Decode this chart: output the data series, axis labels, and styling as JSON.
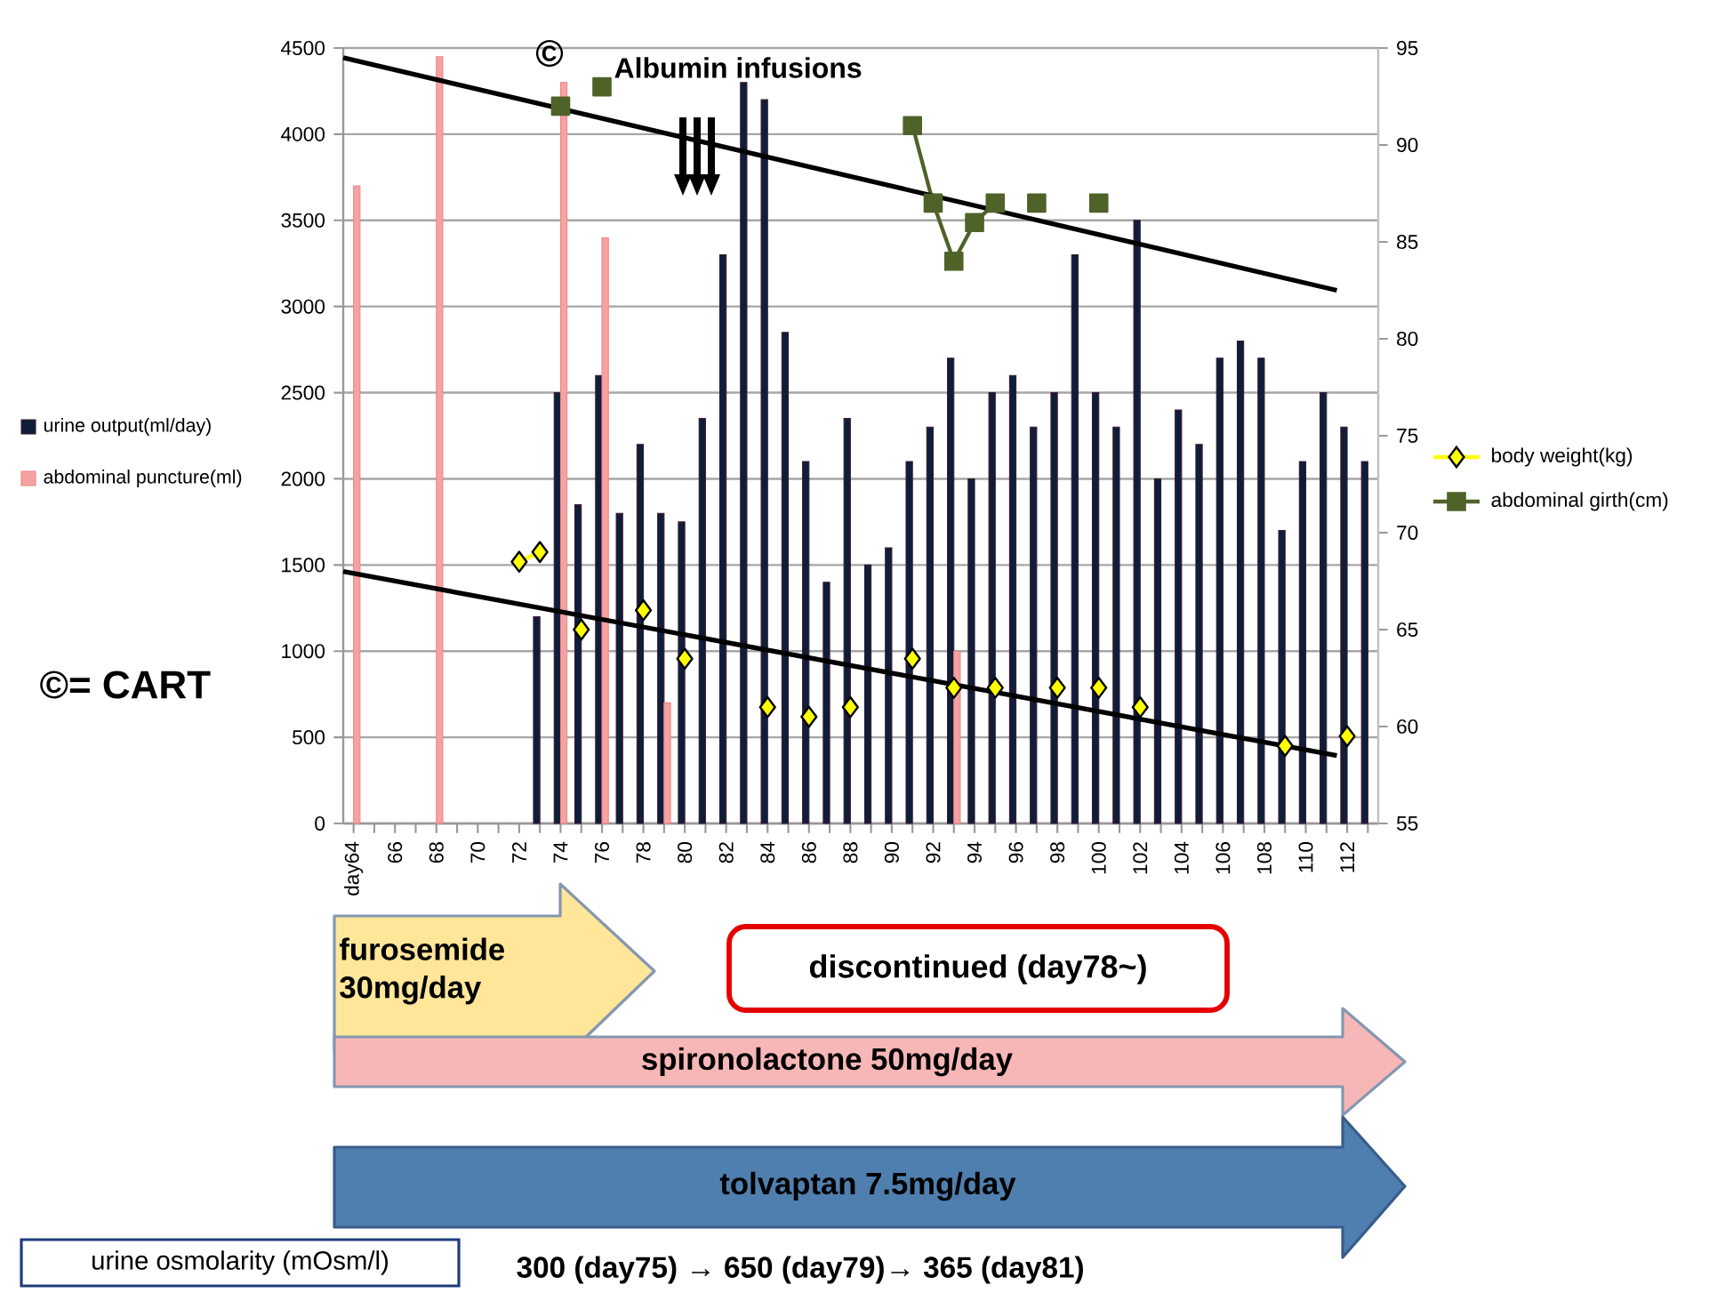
{
  "chart_data": {
    "type": "bar",
    "xlim": [
      63.5,
      113.5
    ],
    "xticks": [
      {
        "value": 64,
        "label": "day64"
      },
      {
        "value": 65,
        "label": null
      },
      66,
      {
        "value": 67,
        "label": null
      },
      68,
      {
        "value": 69,
        "label": null
      },
      70,
      {
        "value": 71,
        "label": null
      },
      72,
      {
        "value": 73,
        "label": null
      },
      74,
      {
        "value": 75,
        "label": null
      },
      76,
      {
        "value": 77,
        "label": null
      },
      78,
      {
        "value": 79,
        "label": null
      },
      80,
      {
        "value": 81,
        "label": null
      },
      82,
      {
        "value": 83,
        "label": null
      },
      84,
      {
        "value": 85,
        "label": null
      },
      86,
      {
        "value": 87,
        "label": null
      },
      88,
      {
        "value": 89,
        "label": null
      },
      90,
      {
        "value": 91,
        "label": null
      },
      92,
      {
        "value": 93,
        "label": null
      },
      94,
      {
        "value": 95,
        "label": null
      },
      96,
      {
        "value": 97,
        "label": null
      },
      98,
      {
        "value": 99,
        "label": null
      },
      100,
      {
        "value": 101,
        "label": null
      },
      102,
      {
        "value": 103,
        "label": null
      },
      104,
      {
        "value": 105,
        "label": null
      },
      106,
      {
        "value": 107,
        "label": null
      },
      108,
      {
        "value": 109,
        "label": null
      },
      110,
      {
        "value": 111,
        "label": null
      },
      112,
      {
        "value": 113,
        "label": null
      }
    ],
    "ylim": [
      0,
      4500
    ],
    "yticks": [
      0,
      500,
      1000,
      1500,
      2000,
      2500,
      3000,
      3500,
      4000,
      4500
    ],
    "y2lim": [
      55,
      95
    ],
    "y2ticks": [
      55,
      60,
      65,
      70,
      75,
      80,
      85,
      90,
      95
    ],
    "grid": true,
    "legend": "right",
    "series": [
      {
        "name": "urine output(ml/day)",
        "color": "#0e1e3a",
        "x": [
          73,
          74,
          75,
          76,
          77,
          78,
          79,
          80,
          81,
          82,
          83,
          84,
          85,
          86,
          87,
          88,
          89,
          90,
          91,
          92,
          93,
          94,
          95,
          96,
          97,
          98,
          99,
          100,
          101,
          102,
          103,
          104,
          105,
          106,
          107,
          108,
          109,
          110,
          111,
          112,
          113
        ],
        "values": [
          1200,
          2500,
          1850,
          2600,
          1800,
          2200,
          1800,
          1750,
          2350,
          3300,
          4300,
          4200,
          2850,
          2100,
          1400,
          2350,
          1500,
          1600,
          2100,
          2300,
          2700,
          2000,
          2500,
          2600,
          2300,
          2500,
          3300,
          2500,
          2300,
          3500,
          2000,
          2400,
          2200,
          2700,
          2800,
          2700,
          1700,
          2100,
          2500,
          2300,
          2100
        ]
      },
      {
        "name": "abdominal puncture(ml)",
        "color": "#f4a3a3",
        "x": [
          64,
          68,
          74,
          76,
          79,
          93
        ],
        "values": [
          3700,
          4450,
          4300,
          3400,
          700,
          1000
        ]
      },
      {
        "name": "body weight(kg)",
        "type": "line",
        "axis": "y2",
        "marker": "diamond",
        "color": "#ffff00",
        "x": [
          72,
          73,
          74,
          75,
          77,
          78,
          79,
          80,
          83,
          84,
          85,
          86,
          87,
          88,
          90,
          91,
          92,
          93,
          94,
          95,
          97,
          98,
          99,
          100,
          101,
          102,
          108,
          109,
          111,
          112
        ],
        "values": [
          68.5,
          69,
          null,
          65,
          null,
          66,
          null,
          63.5,
          null,
          61,
          null,
          60.5,
          null,
          61,
          null,
          63.5,
          null,
          62,
          null,
          62,
          null,
          62,
          null,
          62,
          null,
          61,
          null,
          59,
          null,
          59.5
        ]
      },
      {
        "name": "abdominal girth(cm)",
        "type": "line",
        "axis": "y2",
        "marker": "square",
        "color": "#4f6228",
        "x": [
          74,
          75,
          76,
          90,
          91,
          92,
          93,
          94,
          95,
          96,
          97,
          98,
          99,
          100
        ],
        "values": [
          92,
          null,
          93,
          null,
          91,
          87,
          84,
          86,
          87,
          null,
          87,
          null,
          null,
          87
        ]
      },
      {
        "type": "line",
        "axis": "y2",
        "marker": "none",
        "color": "#000000",
        "x": [
          63.5,
          111.5
        ],
        "values": [
          94.5,
          82.5
        ]
      },
      {
        "type": "line",
        "axis": "y2",
        "marker": "none",
        "color": "#000000",
        "x": [
          63.5,
          111.5
        ],
        "values": [
          68,
          58.5
        ]
      }
    ],
    "annotations": [
      "©",
      "Albumin infusions",
      "©= CART",
      "furosemide 30mg/day",
      "discontinued (day78~)",
      "spironolactone  50mg/day",
      "tolvaptan 7.5mg/day",
      "urine osmolarity (mOsm/l)",
      "300 (day75) → 650 (day79)→ 365 (day81)"
    ]
  }
}
